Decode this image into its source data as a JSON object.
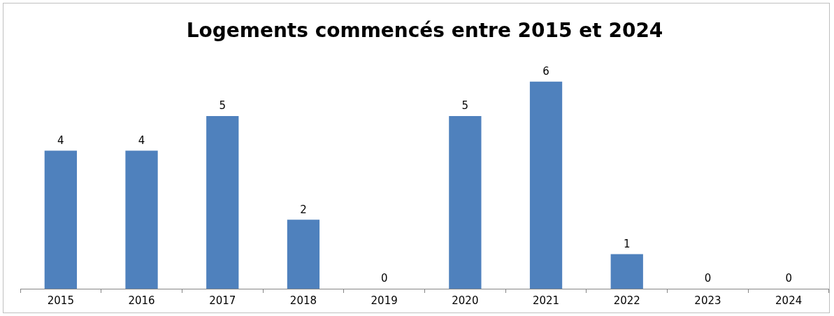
{
  "chart_data": {
    "type": "bar",
    "title": "Logements commencés entre 2015 et 2024",
    "categories": [
      "2015",
      "2016",
      "2017",
      "2018",
      "2019",
      "2020",
      "2021",
      "2022",
      "2023",
      "2024"
    ],
    "values": [
      4,
      4,
      5,
      2,
      0,
      5,
      6,
      1,
      0,
      0
    ],
    "color": "#4f81bd",
    "data_labels": true,
    "grid": false,
    "legend": false
  }
}
